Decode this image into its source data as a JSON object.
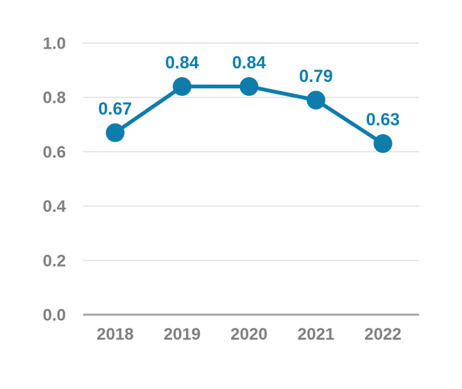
{
  "chart_data": {
    "type": "line",
    "title": "",
    "xlabel": "",
    "ylabel": "",
    "categories": [
      "2018",
      "2019",
      "2020",
      "2021",
      "2022"
    ],
    "values": [
      0.67,
      0.84,
      0.84,
      0.79,
      0.63
    ],
    "data_labels": [
      "0.67",
      "0.84",
      "0.84",
      "0.79",
      "0.63"
    ],
    "ylim": [
      0.0,
      1.0
    ],
    "yticks": [
      0.0,
      0.2,
      0.4,
      0.6,
      0.8,
      1.0
    ],
    "ytick_labels": [
      "0.0",
      "0.2",
      "0.4",
      "0.6",
      "0.8",
      "1.0"
    ],
    "grid": true,
    "legend": "none",
    "colors": {
      "line": "#0E7DAB",
      "marker": "#0E7DAB",
      "data_label": "#0E7DAB",
      "tick_label": "#7F7F7F",
      "gridline": "#DCDCDC",
      "axis_line": "#A6A6A6",
      "background": "#FFFFFF"
    }
  }
}
